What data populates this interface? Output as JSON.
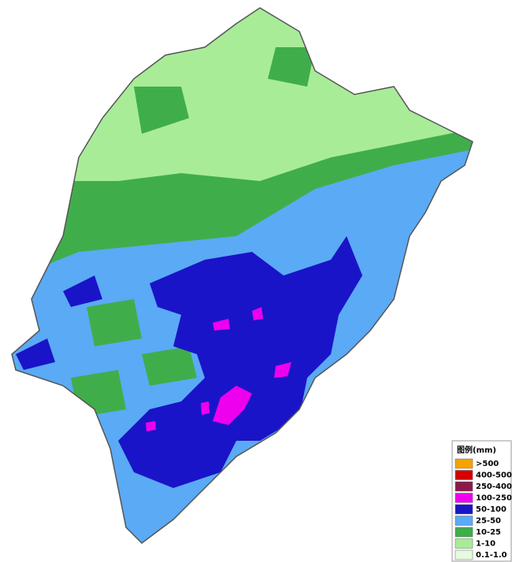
{
  "legend": {
    "title": "图例(mm)",
    "items": [
      {
        "label": ">500",
        "color": "#f5a300"
      },
      {
        "label": "400-500",
        "color": "#d40000"
      },
      {
        "label": "250-400",
        "color": "#8b1a4a"
      },
      {
        "label": "100-250",
        "color": "#ee00ee"
      },
      {
        "label": "50-100",
        "color": "#1a14c8"
      },
      {
        "label": "25-50",
        "color": "#5aaaf5"
      },
      {
        "label": "10-25",
        "color": "#3fae4a"
      },
      {
        "label": "1-10",
        "color": "#a8ec98"
      },
      {
        "label": "0.1-1.0",
        "color": "#e6fae0"
      }
    ]
  }
}
